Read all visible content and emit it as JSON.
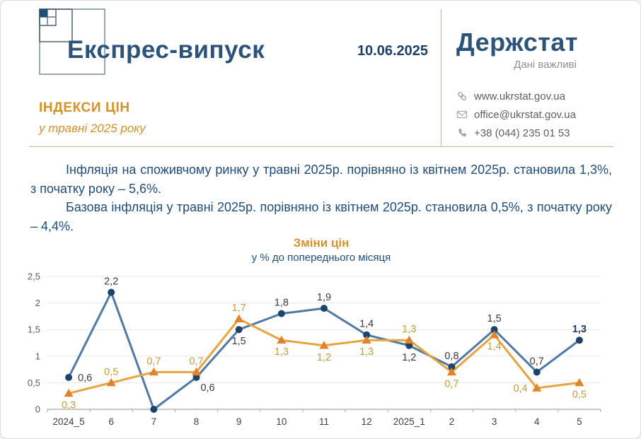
{
  "colors": {
    "primary_blue": "#1f4c78",
    "masthead_blue": "#2c5379",
    "accent_orange": "#d4912c",
    "divider_tan": "#c9b785"
  },
  "header": {
    "title": "Експрес-випуск",
    "date": "10.06.2025",
    "brand": "Держстат",
    "brand_tagline": "Дані важливі",
    "contacts": [
      {
        "icon": "link-icon",
        "text": "www.ukrstat.gov.ua"
      },
      {
        "icon": "email-icon",
        "text": "office@ukrstat.gov.ua"
      },
      {
        "icon": "phone-icon",
        "text": "+38 (044) 235 01 53"
      }
    ]
  },
  "subject": {
    "title": "ІНДЕКСИ ЦІН",
    "subtitle": "у травні 2025 року"
  },
  "body": {
    "paragraph1": "Інфляція на споживчому ринку у травні 2025р. порівняно із квітнем 2025р. становила 1,3%, з початку року – 5,6%.",
    "paragraph2": "Базова інфляція у травні 2025р. порівняно із квітнем 2025р. становила 0,5%, з початку року – 4,4%."
  },
  "chart_data": {
    "type": "line",
    "title": "Зміни цін",
    "subtitle": "у % до попереднього місяця",
    "categories": [
      "2024_5",
      "6",
      "7",
      "8",
      "9",
      "10",
      "11",
      "12",
      "2025_1",
      "2",
      "3",
      "4",
      "5"
    ],
    "y_ticks": [
      "0",
      "0,5",
      "1",
      "1,5",
      "2",
      "2,5"
    ],
    "ylim": [
      0,
      2.5
    ],
    "grid": true,
    "legend": "none",
    "grid_color": "#e8e8e8",
    "axis_color": "#a6a6a6",
    "tick_label_color": "#595959",
    "series": [
      {
        "id": "blue-line",
        "color": "#4e79a4",
        "marker": "circle",
        "marker_color": "#1c436b",
        "values": [
          0.6,
          2.2,
          0.0,
          0.6,
          1.5,
          1.8,
          1.9,
          1.4,
          1.2,
          0.8,
          1.5,
          0.7,
          1.3
        ],
        "labels": [
          "0,6",
          "2,2",
          "",
          "0,6",
          "1,5",
          "1,8",
          "1,9",
          "1,4",
          "1,2",
          "0,8",
          "1,5",
          "0,7",
          "1,3"
        ],
        "label_pos": [
          "right",
          "above",
          "none",
          "below-right",
          "below",
          "above",
          "above",
          "above",
          "below",
          "above",
          "above",
          "above",
          "above"
        ],
        "label_color": "#3a3a3a",
        "bold_labels": [
          12
        ],
        "bold_label_color": "#1f3a60"
      },
      {
        "id": "orange-line",
        "color": "#e5a43f",
        "marker": "triangle",
        "marker_color": "#e0832c",
        "values": [
          0.3,
          0.5,
          0.7,
          0.7,
          1.7,
          1.3,
          1.2,
          1.3,
          1.3,
          0.7,
          1.4,
          0.4,
          0.5
        ],
        "labels": [
          "0,3",
          "0,5",
          "0,7",
          "0,7",
          "1,7",
          "1,3",
          "1,2",
          "1,3",
          "1,3",
          "0,7",
          "1,4",
          "0,4",
          "0,5"
        ],
        "label_pos": [
          "below",
          "above",
          "above",
          "above",
          "above",
          "below",
          "below",
          "below",
          "above",
          "below",
          "below",
          "left",
          "below"
        ],
        "label_color": "#c49b3f",
        "bold_labels": [],
        "bold_label_color": "#c49b3f"
      }
    ]
  }
}
